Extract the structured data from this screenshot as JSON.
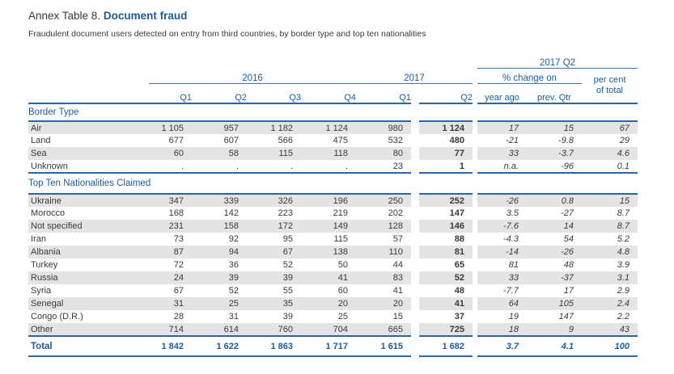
{
  "title": {
    "prefix": "Annex Table 8.",
    "emphasis": "Document fraud"
  },
  "subtitle": "Fraudulent document users detected on entry from third countries, by border type and top ten nationalities",
  "table": {
    "column_groups": {
      "y2016": "2016",
      "y2017": "2017",
      "q2_2017": "2017 Q2",
      "pct_change_on": "% change on",
      "per_cent_line1": "per cent",
      "per_cent_line2": "of total"
    },
    "quarter_headers": [
      "Q1",
      "Q2",
      "Q3",
      "Q4",
      "Q1",
      "Q2"
    ],
    "pct_headers": [
      "year ago",
      "prev. Qtr"
    ],
    "column_keys": [
      "q1-2016",
      "q2-2016",
      "q3-2016",
      "q4-2016",
      "q1-2017",
      "q2-2017",
      "pct-year-ago",
      "pct-prev-qtr",
      "pct-of-total"
    ],
    "sections": [
      {
        "title": "Border Type",
        "rows": [
          {
            "label": "Air",
            "values": [
              "1 105",
              "957",
              "1 182",
              "1 124",
              "980",
              "1 124",
              "17",
              "15",
              "67"
            ]
          },
          {
            "label": "Land",
            "values": [
              "677",
              "607",
              "566",
              "475",
              "532",
              "480",
              "-21",
              "-9.8",
              "29"
            ]
          },
          {
            "label": "Sea",
            "values": [
              "60",
              "58",
              "115",
              "118",
              "80",
              "77",
              "33",
              "-3.7",
              "4.6"
            ]
          },
          {
            "label": "Unknown",
            "values": [
              ".",
              ".",
              ".",
              ".",
              "23",
              "1",
              "n.a.",
              "-96",
              "0.1"
            ]
          }
        ]
      },
      {
        "title": "Top Ten Nationalities Claimed",
        "rows": [
          {
            "label": "Ukraine",
            "values": [
              "347",
              "339",
              "326",
              "196",
              "250",
              "252",
              "-26",
              "0.8",
              "15"
            ]
          },
          {
            "label": "Morocco",
            "values": [
              "168",
              "142",
              "223",
              "219",
              "202",
              "147",
              "3.5",
              "-27",
              "8.7"
            ]
          },
          {
            "label": "Not specified",
            "values": [
              "231",
              "158",
              "172",
              "149",
              "128",
              "146",
              "-7.6",
              "14",
              "8.7"
            ]
          },
          {
            "label": "Iran",
            "values": [
              "73",
              "92",
              "95",
              "115",
              "57",
              "88",
              "-4.3",
              "54",
              "5.2"
            ]
          },
          {
            "label": "Albania",
            "values": [
              "87",
              "94",
              "67",
              "138",
              "110",
              "81",
              "-14",
              "-26",
              "4.8"
            ]
          },
          {
            "label": "Turkey",
            "values": [
              "72",
              "36",
              "52",
              "50",
              "44",
              "65",
              "81",
              "48",
              "3.9"
            ]
          },
          {
            "label": "Russia",
            "values": [
              "24",
              "39",
              "39",
              "41",
              "83",
              "52",
              "33",
              "-37",
              "3.1"
            ]
          },
          {
            "label": "Syria",
            "values": [
              "67",
              "52",
              "55",
              "60",
              "41",
              "48",
              "-7.7",
              "17",
              "2.9"
            ]
          },
          {
            "label": "Senegal",
            "values": [
              "31",
              "25",
              "35",
              "20",
              "20",
              "41",
              "64",
              "105",
              "2.4"
            ]
          },
          {
            "label": "Congo (D.R.)",
            "values": [
              "28",
              "31",
              "39",
              "25",
              "15",
              "37",
              "19",
              "147",
              "2.2"
            ]
          },
          {
            "label": "Other",
            "values": [
              "714",
              "614",
              "760",
              "704",
              "665",
              "725",
              "18",
              "9",
              "43"
            ]
          }
        ]
      }
    ],
    "total": {
      "label": "Total",
      "values": [
        "1 842",
        "1 622",
        "1 863",
        "1 717",
        "1 615",
        "1 682",
        "3.7",
        "4.1",
        "100"
      ]
    }
  },
  "colors": {
    "accent_blue": "#1b5c9e",
    "line_blue": "#2a67a5",
    "row_stripe": "#e4e4e4",
    "text": "#3a3a3a"
  }
}
